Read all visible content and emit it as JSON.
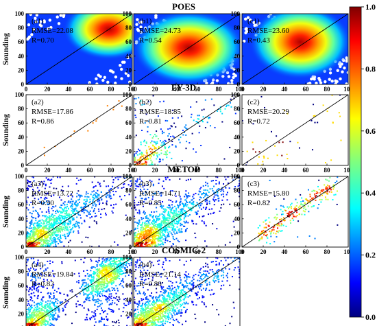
{
  "chart_data": {
    "type": "scatter",
    "x_range": [
      0,
      100
    ],
    "y_range": [
      0,
      100
    ],
    "x_ticks": [
      "0",
      "20",
      "40",
      "60",
      "80",
      "100"
    ],
    "y_ticks": [
      "0",
      "20",
      "40",
      "60",
      "80",
      "100"
    ],
    "ylabel": "Sounding",
    "reference_line": "1:1",
    "colorbar": {
      "range": [
        0.0,
        1.0
      ],
      "ticks": [
        "0.0",
        "0.2",
        "0.4",
        "0.6",
        "0.8",
        "1.0"
      ],
      "colormap": "jet",
      "colors": [
        "#00007f",
        "#0000ff",
        "#007fff",
        "#00ffff",
        "#7fff7f",
        "#ffff00",
        "#ff7f00",
        "#ff0000",
        "#7f0000"
      ]
    },
    "rows": [
      {
        "title": "POES",
        "panels": [
          {
            "label": "(a1)",
            "rmse_text": "RMSE=22.08",
            "r_text": "R=0.70",
            "rmse": 22.08,
            "r": 0.7,
            "density": "dense",
            "center": [
              78,
              78
            ],
            "spread": [
              18,
              18
            ]
          },
          {
            "label": "(b1)",
            "rmse_text": "RMSE=24.73",
            "r_text": "R=0.54",
            "rmse": 24.73,
            "r": 0.54,
            "density": "dense",
            "center": [
              52,
              52
            ],
            "spread": [
              22,
              22
            ]
          },
          {
            "label": "(c1)",
            "rmse_text": "RMSE=23.60",
            "r_text": "R=0.43",
            "rmse": 23.6,
            "r": 0.43,
            "density": "dense",
            "center": [
              55,
              60
            ],
            "spread": [
              20,
              22
            ]
          }
        ]
      },
      {
        "title": "FY-3D",
        "panels": [
          {
            "label": "(a2)",
            "rmse_text": "RMSE=17.86",
            "r_text": "R=0.86",
            "rmse": 17.86,
            "r": 0.86,
            "density": "very_sparse"
          },
          {
            "label": "(b2)",
            "rmse_text": "RMSE=18.85",
            "r_text": "R=0.81",
            "rmse": 18.85,
            "r": 0.81,
            "density": "medium"
          },
          {
            "label": "(c2)",
            "rmse_text": "RMSE=20.29",
            "r_text": "R=0.72",
            "rmse": 20.29,
            "r": 0.72,
            "density": "sparse"
          }
        ]
      },
      {
        "title": "METOP",
        "panels": [
          {
            "label": "(a3)",
            "rmse_text": "RMSE=13.72",
            "r_text": "R=0.90",
            "rmse": 13.72,
            "r": 0.9,
            "density": "high"
          },
          {
            "label": "(b3)",
            "rmse_text": "RMSE=14.71",
            "r_text": "R=0.85",
            "rmse": 14.71,
            "r": 0.85,
            "density": "high"
          },
          {
            "label": "(c3)",
            "rmse_text": "RMSE=15.80",
            "r_text": "R=0.82",
            "rmse": 15.8,
            "r": 0.82,
            "density": "medium_band"
          }
        ]
      },
      {
        "title": "COSMIC-2",
        "panels": [
          {
            "label": "(a4)",
            "rmse_text": "RMSE=19.84",
            "r_text": "R=0.82",
            "rmse": 19.84,
            "r": 0.82,
            "density": "bimodal"
          },
          {
            "label": "(b4)",
            "rmse_text": "RMSE=21.14",
            "r_text": "R=0.80",
            "rmse": 21.14,
            "r": 0.8,
            "density": "high"
          }
        ]
      }
    ]
  }
}
